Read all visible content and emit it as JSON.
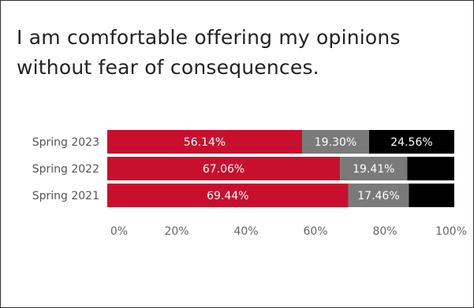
{
  "chart_data": {
    "type": "bar",
    "orientation": "horizontal",
    "stacked": true,
    "title": "I am comfortable offering my opinions without fear of consequences.",
    "categories": [
      "Spring 2023",
      "Spring 2022",
      "Spring 2021"
    ],
    "series": [
      {
        "color": "#c8102e",
        "values": [
          56.14,
          67.06,
          69.44
        ],
        "labels": [
          "56.14%",
          "67.06%",
          "69.44%"
        ]
      },
      {
        "color": "#7a7a7a",
        "values": [
          19.3,
          19.41,
          17.46
        ],
        "labels": [
          "19.30%",
          "19.41%",
          "17.46%"
        ]
      },
      {
        "color": "#000000",
        "values": [
          24.56,
          13.53,
          13.1
        ],
        "labels": [
          "24.56%",
          "",
          ""
        ]
      }
    ],
    "x_ticks": [
      "0%",
      "20%",
      "40%",
      "60%",
      "80%",
      "100%"
    ],
    "xlim": [
      0,
      100
    ],
    "grid": false,
    "legend": "none"
  }
}
